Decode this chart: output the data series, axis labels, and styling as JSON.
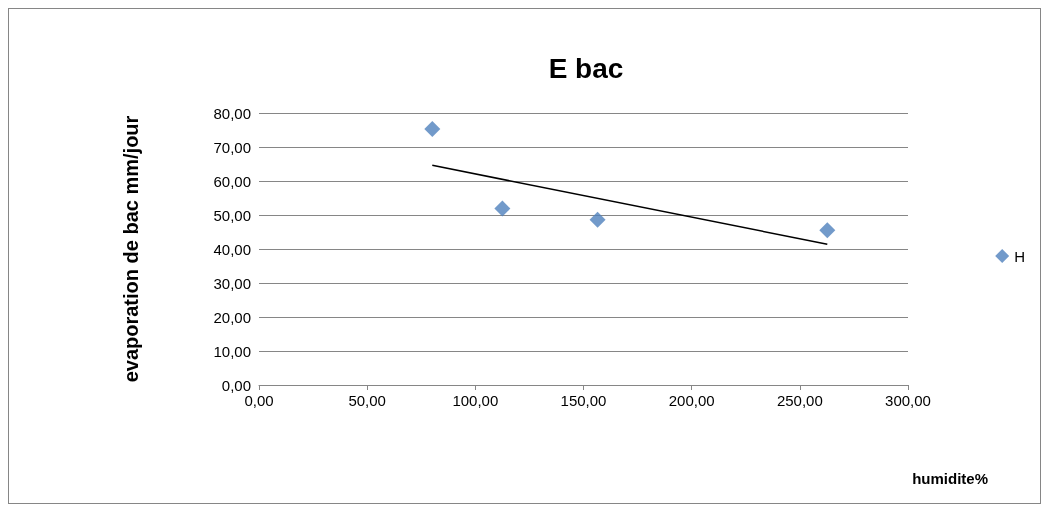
{
  "chart_data": {
    "type": "scatter",
    "title": "E bac",
    "xlabel": "humidite%",
    "ylabel": "evaporation de bac mm/jour",
    "series": [
      {
        "name": "H",
        "color": "#4f81bd",
        "x": [
          80.1,
          112.5,
          156.5,
          262.7
        ],
        "values": [
          75.3,
          51.9,
          48.6,
          45.5
        ],
        "marker": "diamond"
      },
      {
        "type": "line",
        "color": "#000000",
        "x": [
          80.1,
          262.7
        ],
        "values": [
          64.6,
          41.4
        ],
        "marker": "none",
        "line_style": "solid"
      }
    ],
    "xlim": [
      0,
      300
    ],
    "xticks": [
      {
        "value": 0,
        "label": "0,00"
      },
      {
        "value": 50,
        "label": "50,00"
      },
      {
        "value": 100,
        "label": "100,00"
      },
      {
        "value": 150,
        "label": "150,00"
      },
      {
        "value": 200,
        "label": "200,00"
      },
      {
        "value": 250,
        "label": "250,00"
      },
      {
        "value": 300,
        "label": "300,00"
      }
    ],
    "ylim": [
      0,
      80
    ],
    "yticks": [
      {
        "value": 0,
        "label": "0,00"
      },
      {
        "value": 10,
        "label": "10,00"
      },
      {
        "value": 20,
        "label": "20,00"
      },
      {
        "value": 30,
        "label": "30,00"
      },
      {
        "value": 40,
        "label": "40,00"
      },
      {
        "value": 50,
        "label": "50,00"
      },
      {
        "value": 60,
        "label": "60,00"
      },
      {
        "value": 70,
        "label": "70,00"
      },
      {
        "value": 80,
        "label": "80,00"
      }
    ],
    "grid": "y",
    "legend": "right"
  }
}
